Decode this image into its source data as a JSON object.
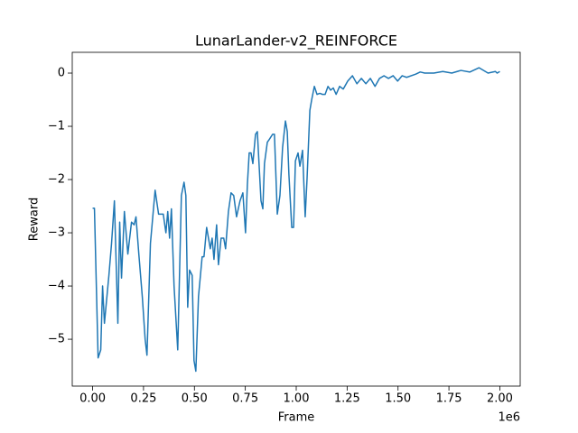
{
  "chart_data": {
    "type": "line",
    "title": "LunarLander-v2_REINFORCE",
    "x_label": "Frame",
    "y_label": "Reward",
    "x_offset_label": "1e6",
    "x": [
      0,
      9000,
      27000,
      40000,
      49000,
      58000,
      80000,
      93000,
      107000,
      124000,
      133000,
      142000,
      156000,
      173000,
      191000,
      204000,
      213000,
      227000,
      244000,
      258000,
      267000,
      284000,
      307000,
      324000,
      347000,
      360000,
      369000,
      378000,
      387000,
      400000,
      418000,
      436000,
      449000,
      458000,
      467000,
      476000,
      489000,
      498000,
      507000,
      520000,
      538000,
      547000,
      560000,
      578000,
      587000,
      596000,
      609000,
      618000,
      631000,
      644000,
      653000,
      667000,
      680000,
      693000,
      707000,
      724000,
      738000,
      751000,
      760000,
      769000,
      778000,
      787000,
      800000,
      809000,
      827000,
      836000,
      844000,
      858000,
      867000,
      884000,
      893000,
      907000,
      920000,
      933000,
      947000,
      956000,
      964000,
      978000,
      987000,
      996000,
      1009000,
      1018000,
      1031000,
      1044000,
      1053000,
      1067000,
      1076000,
      1089000,
      1102000,
      1116000,
      1129000,
      1142000,
      1156000,
      1169000,
      1182000,
      1196000,
      1213000,
      1231000,
      1253000,
      1276000,
      1298000,
      1320000,
      1342000,
      1364000,
      1387000,
      1409000,
      1431000,
      1453000,
      1476000,
      1498000,
      1520000,
      1542000,
      1587000,
      1609000,
      1631000,
      1676000,
      1720000,
      1764000,
      1809000,
      1853000,
      1898000,
      1942000,
      1978000,
      1987000,
      2000000
    ],
    "series": [
      {
        "color": "#1f77b4",
        "values": [
          -2.54,
          -2.54,
          -5.35,
          -5.2,
          -4.0,
          -4.7,
          -3.8,
          -3.2,
          -2.4,
          -4.7,
          -2.8,
          -3.85,
          -2.6,
          -3.4,
          -2.8,
          -2.85,
          -2.7,
          -3.4,
          -4.2,
          -5.0,
          -5.3,
          -3.2,
          -2.2,
          -2.65,
          -2.65,
          -3.0,
          -2.6,
          -3.1,
          -2.55,
          -4.0,
          -5.2,
          -2.3,
          -2.05,
          -2.3,
          -4.4,
          -3.7,
          -3.8,
          -5.4,
          -5.6,
          -4.2,
          -3.45,
          -3.45,
          -2.9,
          -3.3,
          -3.1,
          -3.5,
          -2.85,
          -3.6,
          -3.1,
          -3.1,
          -3.3,
          -2.6,
          -2.25,
          -2.3,
          -2.7,
          -2.4,
          -2.25,
          -3.0,
          -2.1,
          -1.5,
          -1.5,
          -1.7,
          -1.15,
          -1.1,
          -2.4,
          -2.55,
          -1.7,
          -1.3,
          -1.25,
          -1.15,
          -1.15,
          -2.65,
          -2.3,
          -1.4,
          -0.9,
          -1.1,
          -1.9,
          -2.9,
          -2.9,
          -1.65,
          -1.5,
          -1.75,
          -1.45,
          -2.7,
          -2.0,
          -0.7,
          -0.5,
          -0.25,
          -0.4,
          -0.38,
          -0.4,
          -0.4,
          -0.25,
          -0.32,
          -0.28,
          -0.4,
          -0.25,
          -0.3,
          -0.15,
          -0.05,
          -0.2,
          -0.1,
          -0.2,
          -0.1,
          -0.25,
          -0.1,
          -0.05,
          -0.1,
          -0.05,
          -0.15,
          -0.05,
          -0.08,
          -0.02,
          0.02,
          0,
          0,
          0.03,
          0,
          0.05,
          0.02,
          0.1,
          0,
          0.03,
          0,
          0.03
        ]
      }
    ],
    "xlim": [
      -100000,
      2100000
    ],
    "xticks": [
      {
        "value": 0,
        "label": "0.00"
      },
      {
        "value": 250000,
        "label": "0.25"
      },
      {
        "value": 500000,
        "label": "0.50"
      },
      {
        "value": 750000,
        "label": "0.75"
      },
      {
        "value": 1000000,
        "label": "1.00"
      },
      {
        "value": 1250000,
        "label": "1.25"
      },
      {
        "value": 1500000,
        "label": "1.50"
      },
      {
        "value": 1750000,
        "label": "1.75"
      },
      {
        "value": 2000000,
        "label": "2.00"
      }
    ],
    "ylim": [
      -5.88,
      0.39
    ],
    "yticks": [
      {
        "value": -5,
        "label": "−5"
      },
      {
        "value": -4,
        "label": "−4"
      },
      {
        "value": -3,
        "label": "−3"
      },
      {
        "value": -2,
        "label": "−2"
      },
      {
        "value": -1,
        "label": "−1"
      },
      0
    ],
    "grid": false
  }
}
